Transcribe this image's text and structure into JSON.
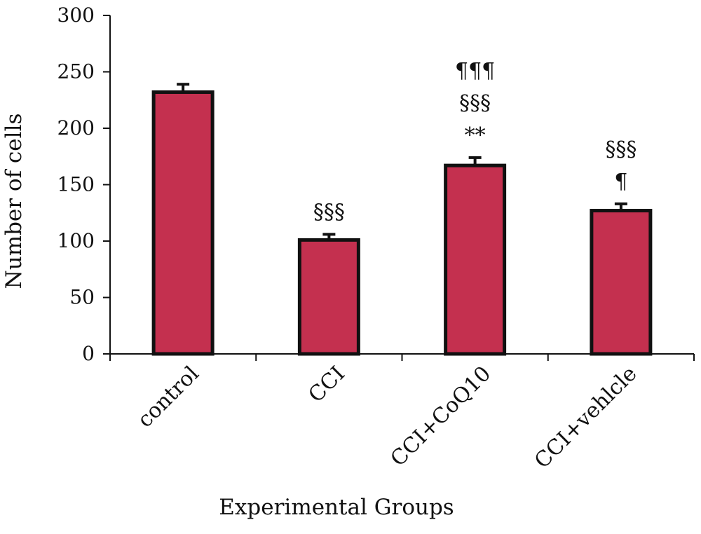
{
  "chart_data": {
    "type": "bar",
    "title": "",
    "xlabel": "Experimental Groups",
    "ylabel": "Number of cells",
    "categories": [
      "control",
      "CCI",
      "CCI+CoQ10",
      "CCI+vehlcle"
    ],
    "series": [
      {
        "values": [
          232,
          101,
          167,
          127
        ],
        "errors": [
          7,
          5,
          7,
          6
        ]
      }
    ],
    "ylim": [
      0,
      300
    ],
    "yticks": [
      0,
      50,
      100,
      150,
      200,
      250,
      300
    ],
    "annotations": [
      [],
      [
        "§§§"
      ],
      [
        "**",
        "§§§",
        "¶¶¶"
      ],
      [
        "¶",
        "§§§"
      ]
    ],
    "bar_color": "#c4304f",
    "bar_edge_color": "#111111",
    "grid": false,
    "legend": "none"
  }
}
